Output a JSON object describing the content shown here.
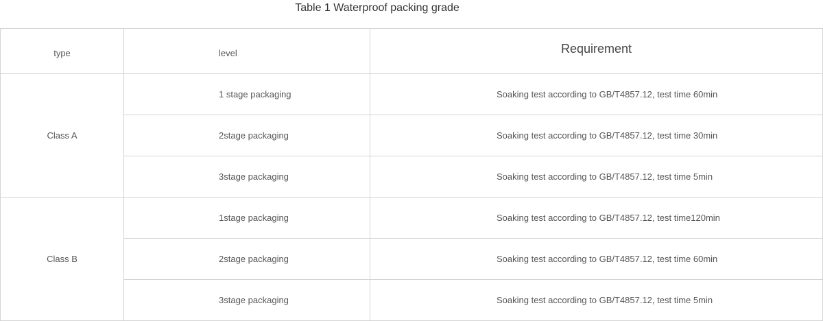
{
  "title": "Table 1 Waterproof packing grade",
  "headers": {
    "type": "type",
    "level": "level",
    "requirement": "Requirement"
  },
  "groups": [
    {
      "type": "Class A",
      "rows": [
        {
          "level": "1 stage packaging",
          "requirement": "Soaking test according to GB/T4857.12, test time 60min"
        },
        {
          "level": "2stage packaging",
          "requirement": "Soaking test according to GB/T4857.12, test time 30min"
        },
        {
          "level": "3stage packaging",
          "requirement": "Soaking test according to GB/T4857.12, test time 5min"
        }
      ]
    },
    {
      "type": "Class B",
      "rows": [
        {
          "level": "1stage packaging",
          "requirement": "Soaking test according to GB/T4857.12, test time120min"
        },
        {
          "level": "2stage packaging",
          "requirement": "Soaking test according to GB/T4857.12, test time 60min"
        },
        {
          "level": "3stage packaging",
          "requirement": "Soaking test according to GB/T4857.12, test time 5min"
        }
      ]
    }
  ]
}
